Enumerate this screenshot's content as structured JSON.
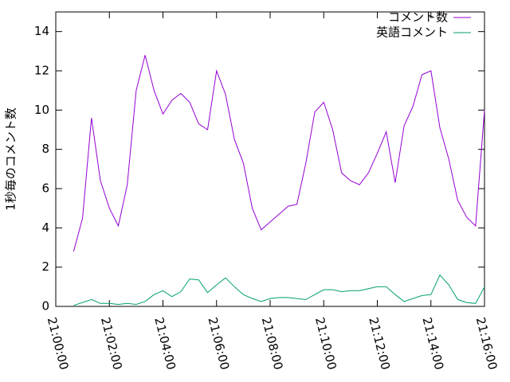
{
  "chart_data": {
    "type": "line",
    "ylabel": "1秒毎のコメント数",
    "x": [
      "21:00:40",
      "21:01:00",
      "21:01:20",
      "21:01:40",
      "21:02:00",
      "21:02:20",
      "21:02:40",
      "21:03:00",
      "21:03:20",
      "21:03:40",
      "21:04:00",
      "21:04:20",
      "21:04:40",
      "21:05:00",
      "21:05:20",
      "21:05:40",
      "21:06:00",
      "21:06:20",
      "21:06:40",
      "21:07:00",
      "21:07:20",
      "21:07:40",
      "21:08:00",
      "21:08:20",
      "21:08:40",
      "21:09:00",
      "21:09:20",
      "21:09:40",
      "21:10:00",
      "21:10:20",
      "21:10:40",
      "21:11:00",
      "21:11:20",
      "21:11:40",
      "21:12:00",
      "21:12:20",
      "21:12:40",
      "21:13:00",
      "21:13:20",
      "21:13:40",
      "21:14:00",
      "21:14:20",
      "21:14:40",
      "21:15:00",
      "21:15:20",
      "21:15:40",
      "21:16:00"
    ],
    "series": [
      {
        "name": "コメント数",
        "color": "#9400d3",
        "values": [
          2.8,
          4.5,
          9.6,
          6.4,
          5.0,
          4.1,
          6.2,
          11,
          12.8,
          11.0,
          9.8,
          10.5,
          10.85,
          10.4,
          9.3,
          9.0,
          12.0,
          10.8,
          8.5,
          7.3,
          5.0,
          3.9,
          4.3,
          4.7,
          5.1,
          5.2,
          7.3,
          9.9,
          10.4,
          9.0,
          6.8,
          6.4,
          6.2,
          6.8,
          7.8,
          8.9,
          6.3,
          9.2,
          10.2,
          11.8,
          12.0,
          9.1,
          7.5,
          5.4,
          4.55,
          4.1,
          10.0
        ]
      },
      {
        "name": "英語コメント",
        "color": "#009e73",
        "values": [
          0.05,
          0.2,
          0.35,
          0.15,
          0.15,
          0.1,
          0.15,
          0.1,
          0.25,
          0.6,
          0.8,
          0.5,
          0.75,
          1.4,
          1.35,
          0.7,
          1.1,
          1.45,
          1.0,
          0.6,
          0.4,
          0.25,
          0.4,
          0.45,
          0.45,
          0.4,
          0.35,
          0.6,
          0.85,
          0.85,
          0.75,
          0.8,
          0.8,
          0.9,
          1.0,
          1.0,
          0.6,
          0.25,
          0.4,
          0.55,
          0.6,
          1.6,
          1.1,
          0.35,
          0.2,
          0.15,
          1.0
        ]
      }
    ],
    "xlim": [
      "21:00:00",
      "21:16:00"
    ],
    "xticks": [
      "21:00:00",
      "21:02:00",
      "21:04:00",
      "21:06:00",
      "21:08:00",
      "21:10:00",
      "21:12:00",
      "21:14:00",
      "21:16:00"
    ],
    "ylim": [
      0,
      15
    ],
    "yticks": [
      0,
      2,
      4,
      6,
      8,
      10,
      12,
      14
    ],
    "legend": "top-right"
  }
}
